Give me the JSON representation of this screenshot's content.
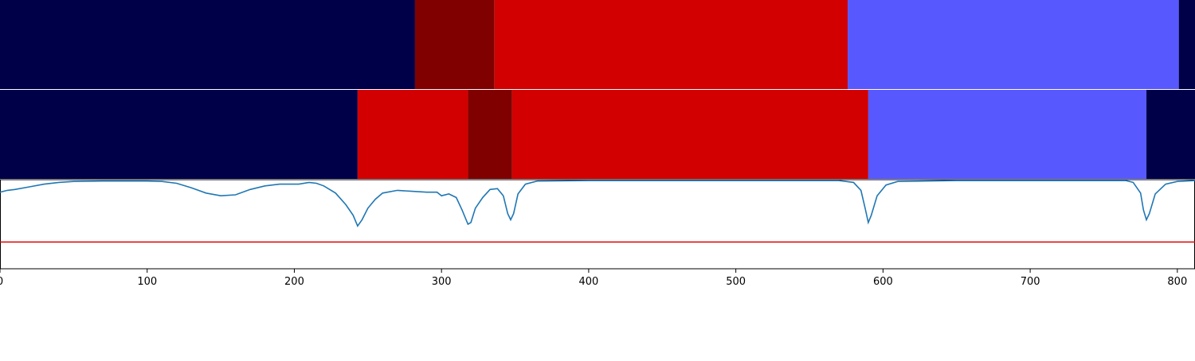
{
  "chart_data": {
    "type": "segmentation-timeline",
    "xlim": [
      0,
      812
    ],
    "x_ticks": [
      0,
      100,
      200,
      300,
      400,
      500,
      600,
      700,
      800
    ],
    "x_tick_labels": [
      "0",
      "100",
      "200",
      "300",
      "400",
      "500",
      "600",
      "700",
      "800"
    ],
    "class_colors": {
      "0": "#000048",
      "1": "#800000",
      "2": "#d20000",
      "3": "#5858ff"
    },
    "rows": [
      {
        "segments": [
          {
            "start": 0,
            "end": 282,
            "class": "0"
          },
          {
            "start": 282,
            "end": 336,
            "class": "1"
          },
          {
            "start": 336,
            "end": 576,
            "class": "2"
          },
          {
            "start": 576,
            "end": 801,
            "class": "3"
          },
          {
            "start": 801,
            "end": 812,
            "class": "0"
          }
        ]
      },
      {
        "segments": [
          {
            "start": 0,
            "end": 243,
            "class": "0"
          },
          {
            "start": 243,
            "end": 318,
            "class": "2"
          },
          {
            "start": 318,
            "end": 348,
            "class": "1"
          },
          {
            "start": 348,
            "end": 590,
            "class": "2"
          },
          {
            "start": 590,
            "end": 779,
            "class": "3"
          },
          {
            "start": 779,
            "end": 812,
            "class": "0"
          }
        ]
      }
    ],
    "confidence": {
      "ylim": [
        0,
        1
      ],
      "threshold": 0.3,
      "line_color": "#1f77b4",
      "threshold_color": "#e00000",
      "points": [
        [
          0,
          0.86
        ],
        [
          5,
          0.88
        ],
        [
          10,
          0.89
        ],
        [
          20,
          0.92
        ],
        [
          30,
          0.95
        ],
        [
          40,
          0.97
        ],
        [
          50,
          0.98
        ],
        [
          70,
          0.985
        ],
        [
          100,
          0.985
        ],
        [
          110,
          0.98
        ],
        [
          120,
          0.96
        ],
        [
          130,
          0.91
        ],
        [
          140,
          0.85
        ],
        [
          150,
          0.82
        ],
        [
          160,
          0.83
        ],
        [
          170,
          0.89
        ],
        [
          180,
          0.93
        ],
        [
          190,
          0.95
        ],
        [
          203,
          0.95
        ],
        [
          210,
          0.97
        ],
        [
          215,
          0.96
        ],
        [
          220,
          0.93
        ],
        [
          228,
          0.85
        ],
        [
          235,
          0.72
        ],
        [
          240,
          0.6
        ],
        [
          243,
          0.48
        ],
        [
          246,
          0.55
        ],
        [
          250,
          0.68
        ],
        [
          255,
          0.78
        ],
        [
          260,
          0.85
        ],
        [
          270,
          0.88
        ],
        [
          280,
          0.87
        ],
        [
          290,
          0.86
        ],
        [
          297,
          0.86
        ],
        [
          300,
          0.82
        ],
        [
          305,
          0.84
        ],
        [
          310,
          0.8
        ],
        [
          314,
          0.66
        ],
        [
          318,
          0.5
        ],
        [
          320,
          0.52
        ],
        [
          323,
          0.68
        ],
        [
          328,
          0.8
        ],
        [
          333,
          0.89
        ],
        [
          338,
          0.9
        ],
        [
          342,
          0.82
        ],
        [
          345,
          0.62
        ],
        [
          347,
          0.55
        ],
        [
          349,
          0.62
        ],
        [
          352,
          0.84
        ],
        [
          357,
          0.95
        ],
        [
          365,
          0.985
        ],
        [
          400,
          0.99
        ],
        [
          500,
          0.99
        ],
        [
          570,
          0.99
        ],
        [
          580,
          0.97
        ],
        [
          585,
          0.88
        ],
        [
          588,
          0.67
        ],
        [
          590,
          0.52
        ],
        [
          592,
          0.6
        ],
        [
          596,
          0.82
        ],
        [
          602,
          0.94
        ],
        [
          610,
          0.98
        ],
        [
          650,
          0.99
        ],
        [
          700,
          0.99
        ],
        [
          765,
          0.99
        ],
        [
          770,
          0.97
        ],
        [
          775,
          0.85
        ],
        [
          777,
          0.66
        ],
        [
          779,
          0.55
        ],
        [
          781,
          0.62
        ],
        [
          785,
          0.84
        ],
        [
          792,
          0.95
        ],
        [
          800,
          0.98
        ],
        [
          812,
          0.99
        ]
      ]
    }
  }
}
